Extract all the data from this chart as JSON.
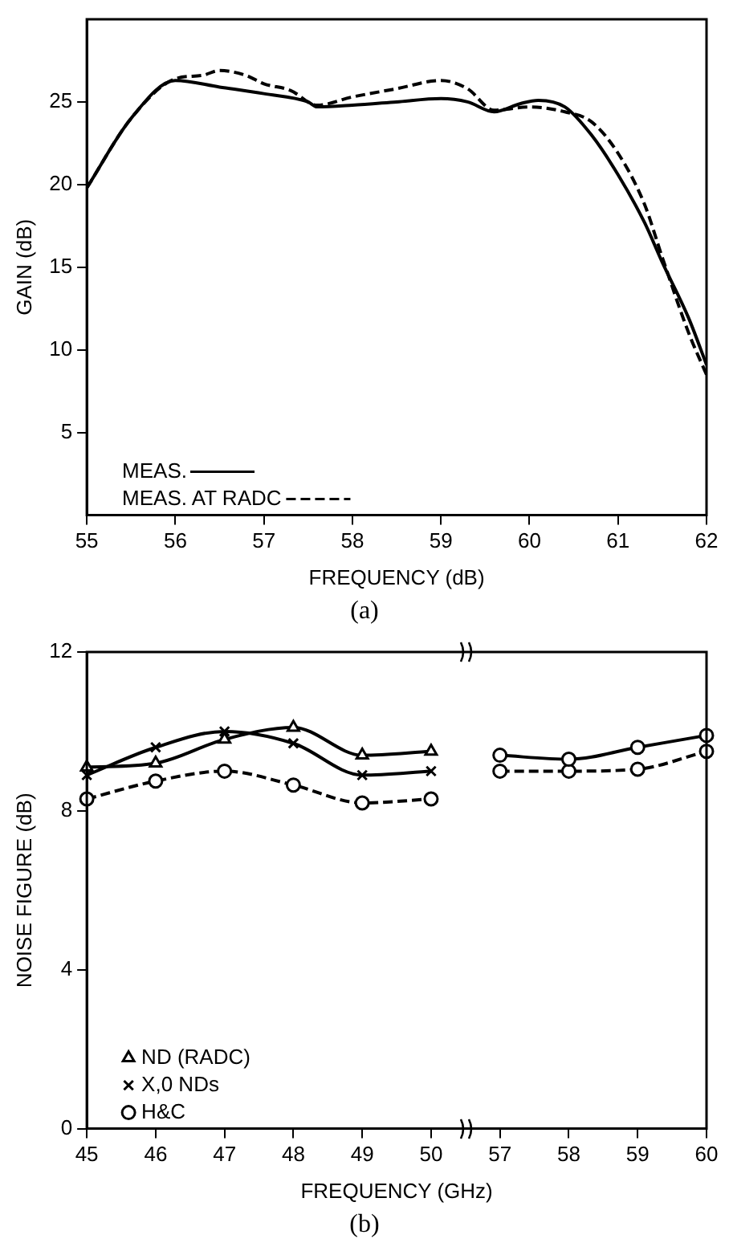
{
  "chart_data": [
    {
      "type": "line",
      "xlabel": "FREQUENCY (dB)",
      "ylabel": "GAIN (dB)",
      "annotations": [
        "(a)"
      ],
      "xlim": [
        55,
        62
      ],
      "xticks": [
        55,
        56,
        57,
        58,
        59,
        60,
        61,
        62
      ],
      "ylim": [
        0,
        30
      ],
      "yticks": [
        5,
        10,
        15,
        20,
        25
      ],
      "grid": false,
      "legend": "bottom left",
      "marker": "none",
      "series": [
        {
          "name": "MEAS.",
          "color": "#000000",
          "line_style": "solid",
          "x": [
            55,
            55.5,
            56,
            56.5,
            57,
            57.5,
            57.6,
            58,
            58.5,
            59,
            59.3,
            59.6,
            59.9,
            60.1,
            60.4,
            60.7,
            61,
            61.3,
            61.5,
            61.8,
            62
          ],
          "values": [
            19.8,
            24.0,
            26.3,
            25.9,
            25.5,
            25.0,
            24.7,
            24.8,
            25.0,
            25.2,
            25.0,
            24.4,
            24.9,
            25.1,
            24.7,
            23.0,
            20.6,
            17.7,
            15.3,
            11.9,
            9.1
          ]
        },
        {
          "name": "MEAS. AT RADC",
          "color": "#000000",
          "line_style": "dashed",
          "x": [
            55,
            55.5,
            56,
            56.3,
            56.5,
            56.8,
            57,
            57.3,
            57.6,
            58,
            58.5,
            59,
            59.3,
            59.6,
            60,
            60.4,
            60.7,
            61,
            61.3,
            61.5,
            61.8,
            62
          ],
          "values": [
            19.8,
            24.0,
            26.4,
            26.6,
            26.9,
            26.6,
            26.1,
            25.7,
            24.8,
            25.3,
            25.8,
            26.3,
            25.8,
            24.5,
            24.7,
            24.4,
            23.8,
            21.9,
            18.8,
            15.6,
            11.0,
            8.5
          ]
        }
      ]
    },
    {
      "type": "line",
      "xlabel": "FREQUENCY (GHz)",
      "ylabel": "NOISE FIGURE (dB)",
      "annotations": [
        "(b)"
      ],
      "categories": [
        "45",
        "46",
        "47",
        "48",
        "49",
        "50",
        "57",
        "58",
        "59",
        "60"
      ],
      "ylim": [
        0,
        12
      ],
      "yticks": [
        0,
        4,
        8,
        12
      ],
      "grid": false,
      "legend": "bottom left",
      "series": [
        {
          "name": "ND (RADC)",
          "color": "#000000",
          "marker": "triangle",
          "line_style": "solid",
          "values": [
            9.1,
            9.2,
            9.8,
            10.1,
            9.4,
            9.5,
            null,
            null,
            null,
            null
          ]
        },
        {
          "name": "X,0 NDs",
          "color": "#000000",
          "marker": "cross",
          "line_style": "solid",
          "values": [
            8.9,
            9.6,
            10.0,
            9.7,
            8.9,
            9.0,
            null,
            null,
            null,
            null
          ]
        },
        {
          "color": "#000000",
          "marker": "circle",
          "line_style": "solid",
          "values": [
            null,
            null,
            null,
            null,
            null,
            null,
            9.4,
            9.3,
            9.6,
            9.9
          ]
        },
        {
          "name": "H&C",
          "color": "#000000",
          "marker": "circle",
          "line_style": "dashed",
          "values": [
            8.3,
            8.75,
            9.0,
            8.65,
            8.2,
            8.3,
            null,
            null,
            null,
            null
          ]
        },
        {
          "color": "#000000",
          "marker": "circle",
          "line_style": "dashed",
          "values": [
            null,
            null,
            null,
            null,
            null,
            null,
            9.0,
            9.0,
            9.05,
            9.5
          ]
        }
      ]
    }
  ]
}
